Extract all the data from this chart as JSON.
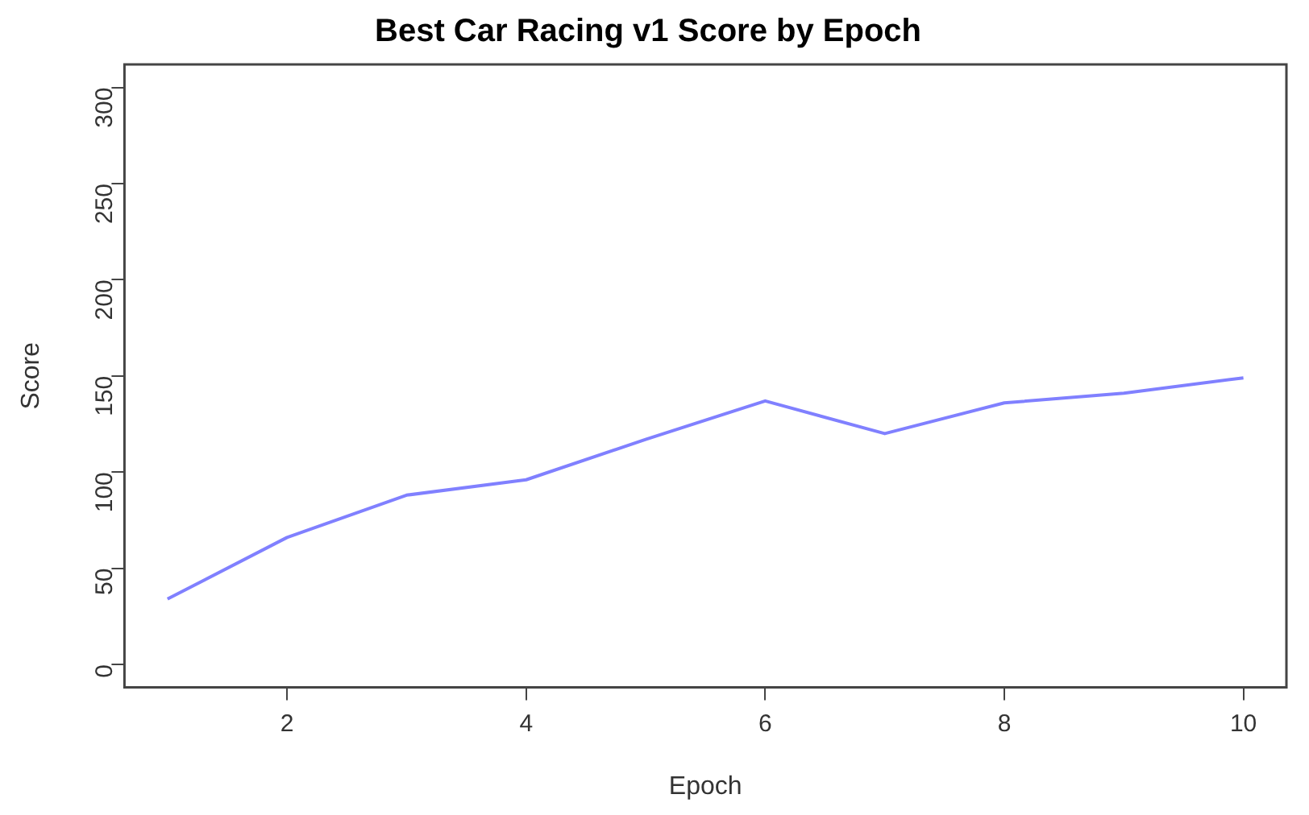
{
  "chart_data": {
    "type": "line",
    "title": "Best Car Racing v1 Score by Epoch",
    "xlabel": "Epoch",
    "ylabel": "Score",
    "x": [
      1,
      2,
      3,
      4,
      5,
      6,
      7,
      8,
      9,
      10
    ],
    "series": [
      {
        "color": "#8080ff",
        "values": [
          34,
          66,
          88,
          96,
          117,
          137,
          120,
          136,
          141,
          149
        ]
      }
    ],
    "xlim": [
      0.64,
      10.36
    ],
    "xticks": [
      2,
      4,
      6,
      8,
      10
    ],
    "ylim": [
      -12,
      312
    ],
    "yticks": [
      0,
      50,
      100,
      150,
      200,
      250,
      300
    ],
    "grid": false,
    "legend": false,
    "marker": "none",
    "line_style": "solid"
  }
}
